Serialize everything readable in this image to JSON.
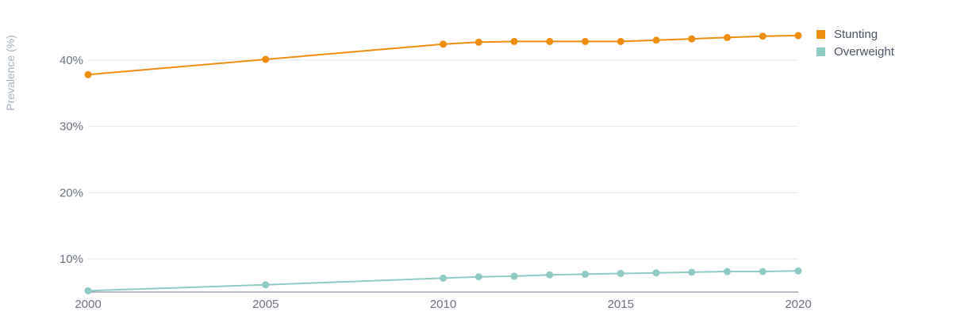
{
  "chart_data": {
    "type": "line",
    "ylabel": "Prevalence (%)",
    "xlabel": "",
    "x_ticks": [
      "2000",
      "2005",
      "2010",
      "2015",
      "2020"
    ],
    "y_ticks": [
      "10%",
      "20%",
      "30%",
      "40%"
    ],
    "xlim": [
      2000,
      2020
    ],
    "ylim": [
      5,
      45
    ],
    "grid": true,
    "legend_position": "top-right",
    "series": [
      {
        "name": "Stunting",
        "color": "#ee8c0e",
        "x": [
          2000,
          2005,
          2010,
          2011,
          2012,
          2013,
          2014,
          2015,
          2016,
          2017,
          2018,
          2019,
          2020
        ],
        "y": [
          37.8,
          40.1,
          42.4,
          42.7,
          42.8,
          42.8,
          42.8,
          42.8,
          43.0,
          43.2,
          43.4,
          43.6,
          43.7
        ]
      },
      {
        "name": "Overweight",
        "color": "#8ecbc4",
        "x": [
          2000,
          2005,
          2010,
          2011,
          2012,
          2013,
          2014,
          2015,
          2016,
          2017,
          2018,
          2019,
          2020
        ],
        "y": [
          5.2,
          6.1,
          7.1,
          7.3,
          7.4,
          7.6,
          7.7,
          7.8,
          7.9,
          8.0,
          8.1,
          8.1,
          8.2
        ]
      }
    ]
  }
}
